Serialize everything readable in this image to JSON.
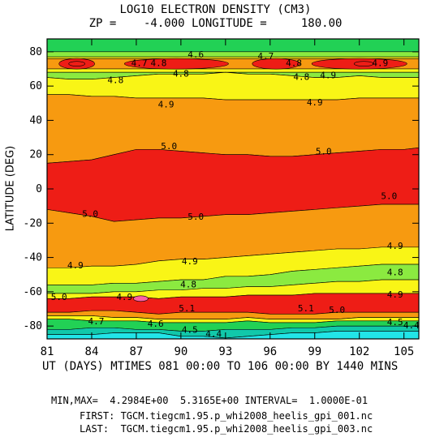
{
  "title_line1": "LOG10 ELECTRON DENSITY (CM3)",
  "title_line2": "ZP =    -4.000 LONGITUDE =     180.00",
  "xaxis_label": "UT (DAYS) MTIMES 081 00:00 TO 106 00:00 BY 1440 MINS",
  "yaxis_label": "LATITUDE (DEG)",
  "minmax_line": "MIN,MAX=  4.2984E+00  5.3165E+00 INTERVAL=  1.0000E-01",
  "first_line": "FIRST: TGCM.tiegcm1.95.p_whi2008_heelis_gpi_001.nc",
  "last_line": "LAST:  TGCM.tiegcm1.95.p_whi2008_heelis_gpi_003.nc",
  "colors": {
    "cyan": "#22e5e8",
    "teal": "#11c8aa",
    "green": "#22d155",
    "lightgreen": "#8bea40",
    "yellow": "#f9f516",
    "orange": "#f79a10",
    "red": "#ee1d16",
    "pink": "#ff5fa4"
  },
  "chart_data": {
    "type": "contour",
    "title": "LOG10 ELECTRON DENSITY (CM3)",
    "subtitle": "ZP =    -4.000 LONGITUDE =     180.00",
    "xlabel": "UT (DAYS) MTIMES 081 00:00 TO 106 00:00 BY 1440 MINS",
    "ylabel": "LATITUDE (DEG)",
    "xlim": [
      81,
      106
    ],
    "ylim": [
      -87.5,
      87.5
    ],
    "xticks": [
      81,
      84,
      87,
      90,
      93,
      96,
      99,
      102,
      105
    ],
    "yticks": [
      -80,
      -60,
      -40,
      -20,
      0,
      20,
      40,
      60,
      80
    ],
    "min": 4.2984,
    "max": 5.3165,
    "interval": 0.1,
    "levels": [
      4.4,
      4.5,
      4.6,
      4.7,
      4.8,
      4.9,
      5.0,
      5.1,
      5.2,
      5.3
    ],
    "bands": [
      {
        "level": "lt-4.4",
        "color": "cyan"
      },
      {
        "level": "4.4-4.5",
        "color": "teal"
      },
      {
        "level": "4.5-4.7",
        "color": "green"
      },
      {
        "level": "4.7-4.8",
        "color": "lightgreen"
      },
      {
        "level": "4.8-4.9",
        "color": "yellow"
      },
      {
        "level": "4.9-5.0",
        "color": "orange"
      },
      {
        "level": "5.0-5.2",
        "color": "red"
      },
      {
        "level": "gt-5.2",
        "color": "pink"
      }
    ],
    "contour_labels": [
      {
        "text": "4.7",
        "x": 87.2,
        "y": 73.5
      },
      {
        "text": "4.8",
        "x": 88.5,
        "y": 73.5
      },
      {
        "text": "4.6",
        "x": 91.0,
        "y": 78.5
      },
      {
        "text": "4.7",
        "x": 95.7,
        "y": 77.5
      },
      {
        "text": "4.8",
        "x": 97.6,
        "y": 73.5
      },
      {
        "text": "4.9",
        "x": 103.4,
        "y": 73.5
      },
      {
        "text": "4.8",
        "x": 85.6,
        "y": 63.5
      },
      {
        "text": "4.8",
        "x": 90.0,
        "y": 67.5
      },
      {
        "text": "4.8",
        "x": 98.1,
        "y": 65.5
      },
      {
        "text": "4.9",
        "x": 99.9,
        "y": 66.5
      },
      {
        "text": "4.9",
        "x": 89.0,
        "y": 49.5
      },
      {
        "text": "4.9",
        "x": 99.0,
        "y": 50.5
      },
      {
        "text": "5.0",
        "x": 89.2,
        "y": 25.0
      },
      {
        "text": "5.0",
        "x": 99.6,
        "y": 22.0
      },
      {
        "text": "5.0",
        "x": 104.0,
        "y": -4.0
      },
      {
        "text": "5.0",
        "x": 83.9,
        "y": -14.5
      },
      {
        "text": "5.0",
        "x": 91.0,
        "y": -16.0
      },
      {
        "text": "4.9",
        "x": 104.4,
        "y": -33.0
      },
      {
        "text": "4.9",
        "x": 82.9,
        "y": -44.5
      },
      {
        "text": "4.9",
        "x": 90.6,
        "y": -42.0
      },
      {
        "text": "4.8",
        "x": 104.4,
        "y": -48.5
      },
      {
        "text": "4.8",
        "x": 90.5,
        "y": -55.5
      },
      {
        "text": "4.9",
        "x": 104.4,
        "y": -61.5
      },
      {
        "text": "5.0",
        "x": 81.8,
        "y": -63.0
      },
      {
        "text": "4.9",
        "x": 86.2,
        "y": -63.0
      },
      {
        "text": "5.1",
        "x": 90.4,
        "y": -69.5
      },
      {
        "text": "5.1",
        "x": 98.4,
        "y": -69.5
      },
      {
        "text": "5.0",
        "x": 100.5,
        "y": -70.5
      },
      {
        "text": "4.7",
        "x": 84.3,
        "y": -77.0
      },
      {
        "text": "4.6",
        "x": 88.3,
        "y": -78.5
      },
      {
        "text": "4.5",
        "x": 90.6,
        "y": -82.0
      },
      {
        "text": "4.4",
        "x": 92.2,
        "y": -84.5
      },
      {
        "text": "4.5",
        "x": 104.4,
        "y": -77.5
      },
      {
        "text": "4.4",
        "x": 105.5,
        "y": -79.5
      }
    ]
  }
}
